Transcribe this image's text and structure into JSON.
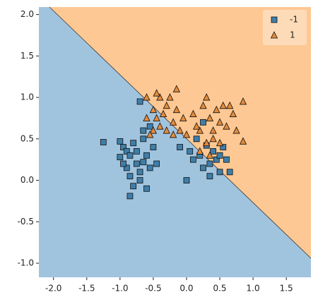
{
  "chart_data": {
    "type": "scatter",
    "xlim": [
      -2.22,
      1.87
    ],
    "ylim": [
      -1.17,
      2.09
    ],
    "xticks": [
      {
        "value": -2,
        "label": "-2.0"
      },
      -1.5,
      {
        "value": -1,
        "label": "-1.0"
      },
      -0.5,
      {
        "value": 0,
        "label": "0.0"
      },
      0.5,
      {
        "value": 1,
        "label": "1.0"
      },
      1.5
    ],
    "yticks": [
      {
        "value": -1,
        "label": "-1.0"
      },
      -0.5,
      {
        "value": 0,
        "label": "0.0"
      },
      0.5,
      {
        "value": 1,
        "label": "1.0"
      },
      1.5,
      {
        "value": 2,
        "label": "2.0"
      }
    ],
    "legend": "upper right",
    "boundary": {
      "x": [
        -2.06,
        1.87
      ],
      "y": [
        2.09,
        -0.94
      ]
    },
    "region_colors": [
      "#a1c4de",
      "#fdc893"
    ],
    "series": [
      {
        "name": "-1",
        "marker": "square",
        "color": "#3f7ea8",
        "x": [
          -1.25,
          -1.0,
          -0.95,
          -0.9,
          -0.85,
          -0.8,
          -0.75,
          -0.7,
          -0.65,
          -0.6,
          -0.55,
          -0.5,
          -0.9,
          -0.85,
          -0.8,
          -0.7,
          -0.6,
          -0.85,
          -0.95,
          -0.75,
          -0.65,
          -0.55,
          -0.7,
          -0.45,
          -0.65,
          -1.0,
          -0.1,
          0.05,
          0.1,
          0.2,
          0.25,
          0.3,
          0.35,
          0.4,
          0.45,
          0.5,
          0.55,
          0.6,
          0.0,
          0.25,
          0.15,
          0.65,
          0.35,
          0.5
        ],
        "y": [
          0.46,
          0.47,
          0.4,
          0.35,
          0.3,
          0.45,
          0.2,
          0.1,
          0.5,
          0.3,
          0.15,
          0.4,
          0.15,
          0.05,
          -0.07,
          0.0,
          -0.1,
          -0.19,
          0.2,
          0.35,
          0.6,
          0.65,
          0.95,
          0.2,
          0.22,
          0.28,
          0.4,
          0.35,
          0.25,
          0.3,
          0.15,
          0.42,
          0.2,
          0.35,
          0.25,
          0.1,
          0.4,
          0.25,
          0.0,
          0.7,
          0.5,
          0.1,
          0.05,
          0.3
        ]
      },
      {
        "name": "1",
        "marker": "triangle",
        "color": "#e58b3b",
        "x": [
          -0.6,
          -0.5,
          -0.45,
          -0.4,
          -0.35,
          -0.3,
          -0.25,
          -0.2,
          -0.15,
          -0.1,
          -0.05,
          0.0,
          -0.4,
          -0.3,
          -0.2,
          -0.5,
          -0.55,
          -0.6,
          0.1,
          0.2,
          0.25,
          0.3,
          0.35,
          0.4,
          0.45,
          0.5,
          0.55,
          0.6,
          0.7,
          0.75,
          0.85,
          0.85,
          0.3,
          0.4,
          0.5,
          0.2,
          0.35,
          -0.45,
          -0.15,
          0.65,
          0.15
        ],
        "y": [
          1.0,
          0.85,
          0.75,
          0.65,
          0.8,
          0.9,
          1.0,
          0.7,
          0.85,
          0.6,
          0.75,
          0.55,
          1.0,
          0.6,
          0.55,
          0.6,
          0.55,
          0.75,
          0.8,
          0.6,
          0.9,
          1.0,
          0.75,
          0.6,
          0.85,
          0.7,
          0.9,
          0.65,
          0.8,
          0.6,
          0.95,
          0.47,
          0.45,
          0.5,
          0.45,
          0.35,
          0.3,
          1.05,
          1.1,
          0.9,
          0.65
        ]
      }
    ]
  }
}
